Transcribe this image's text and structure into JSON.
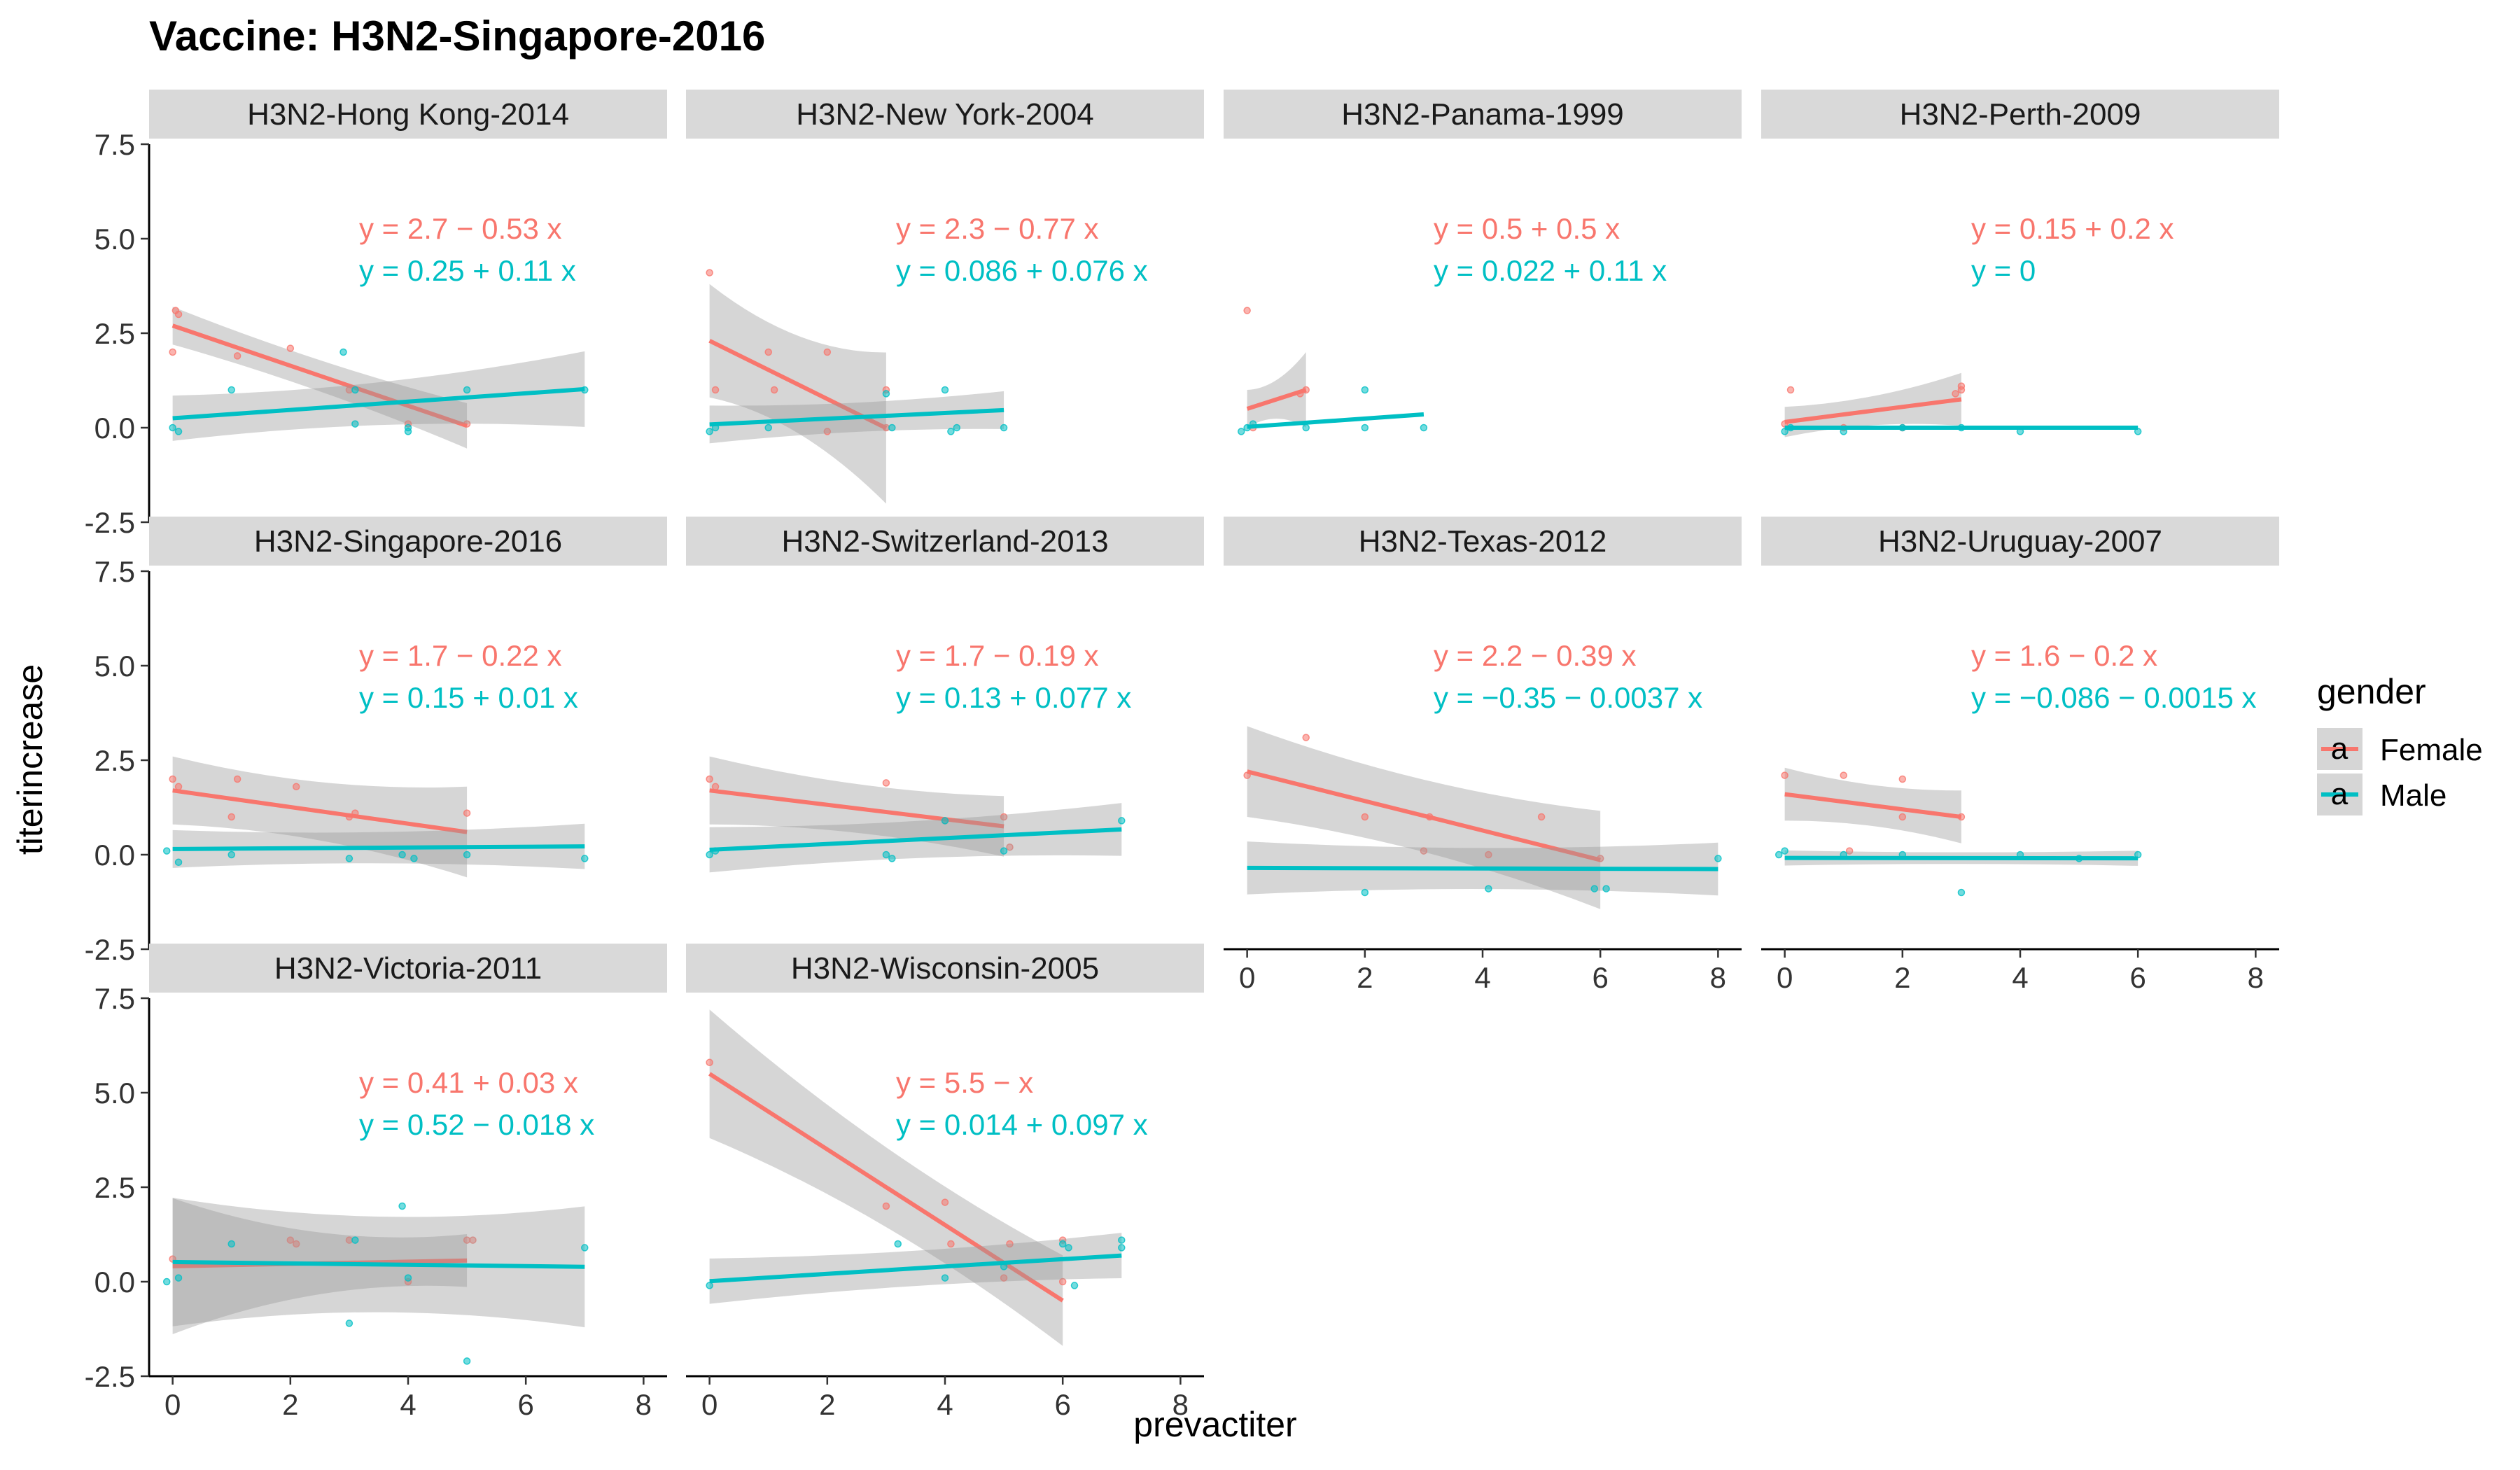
{
  "chart_data": {
    "type": "scatter",
    "title": "Vaccine: H3N2-Singapore-2016",
    "xlabel": "prevactiter",
    "ylabel": "titerincrease",
    "xlim": [
      -0.4,
      8.4
    ],
    "ylim": [
      -2.5,
      7.5
    ],
    "x_ticks": [
      "0",
      "2",
      "4",
      "6",
      "8"
    ],
    "y_ticks": [
      "-2.5",
      "0.0",
      "2.5",
      "5.0",
      "7.5"
    ],
    "legend": {
      "title": "gender",
      "position": "right",
      "entries": [
        {
          "name": "Female",
          "color": "#F8766D"
        },
        {
          "name": "Male",
          "color": "#00BFC4"
        }
      ]
    },
    "colors": {
      "female": "#F8766D",
      "male": "#00BFC4",
      "band": "#999999",
      "strip": "#d9d9d9"
    },
    "panels": [
      {
        "name": "H3N2-Hong Kong-2014",
        "female": {
          "equation": "y = 2.7 − 0.53 x",
          "intercept": 2.7,
          "slope": -0.53,
          "x_range": [
            0,
            5
          ],
          "se_at_ends": [
            0.5,
            0.6
          ],
          "points": [
            [
              0,
              2.0
            ],
            [
              0.1,
              3.0
            ],
            [
              0.05,
              3.1
            ],
            [
              1.1,
              1.9
            ],
            [
              2,
              2.1
            ],
            [
              3,
              1.0
            ],
            [
              4,
              0.1
            ],
            [
              5,
              0.1
            ]
          ]
        },
        "male": {
          "equation": "y = 0.25 + 0.11 x",
          "intercept": 0.25,
          "slope": 0.11,
          "x_range": [
            0,
            7
          ],
          "se_at_ends": [
            0.6,
            1.0
          ],
          "points": [
            [
              0,
              0.0
            ],
            [
              0.1,
              -0.1
            ],
            [
              1,
              1.0
            ],
            [
              2.9,
              2.0
            ],
            [
              3.1,
              1.0
            ],
            [
              3.1,
              0.1
            ],
            [
              4,
              0.0
            ],
            [
              4,
              -0.1
            ],
            [
              5,
              1.0
            ],
            [
              7,
              1.0
            ]
          ]
        }
      },
      {
        "name": "H3N2-New York-2004",
        "female": {
          "equation": "y = 2.3 − 0.77 x",
          "intercept": 2.3,
          "slope": -0.77,
          "x_range": [
            0,
            3
          ],
          "se_at_ends": [
            1.5,
            2.0
          ],
          "points": [
            [
              0,
              4.1
            ],
            [
              0.1,
              1.0
            ],
            [
              1,
              2.0
            ],
            [
              1.1,
              1.0
            ],
            [
              2,
              2.0
            ],
            [
              2,
              -0.1
            ],
            [
              3,
              1.0
            ],
            [
              3,
              0.0
            ]
          ]
        },
        "male": {
          "equation": "y = 0.086 + 0.076 x",
          "intercept": 0.086,
          "slope": 0.076,
          "x_range": [
            0,
            5
          ],
          "se_at_ends": [
            0.5,
            0.5
          ],
          "points": [
            [
              0,
              -0.1
            ],
            [
              0.1,
              0.0
            ],
            [
              1,
              0.0
            ],
            [
              3,
              0.9
            ],
            [
              3.1,
              0.0
            ],
            [
              4,
              1.0
            ],
            [
              4.1,
              -0.1
            ],
            [
              4.2,
              0.0
            ],
            [
              5,
              0.0
            ]
          ]
        }
      },
      {
        "name": "H3N2-Panama-1999",
        "female": {
          "equation": "y = 0.5 + 0.5 x",
          "intercept": 0.5,
          "slope": 0.5,
          "x_range": [
            0,
            1
          ],
          "se_at_ends": [
            0.5,
            1.0
          ],
          "points": [
            [
              0,
              3.1
            ],
            [
              0.1,
              0.0
            ],
            [
              1,
              1.0
            ],
            [
              0.9,
              0.9
            ]
          ]
        },
        "male": {
          "equation": "y = 0.022 + 0.11 x",
          "intercept": 0.022,
          "slope": 0.11,
          "x_range": [
            0,
            3
          ],
          "se_at_ends": [
            0,
            0
          ],
          "points": [
            [
              -0.1,
              -0.1
            ],
            [
              0,
              0.0
            ],
            [
              0.1,
              0.1
            ],
            [
              1,
              0.0
            ],
            [
              2,
              1.0
            ],
            [
              2,
              0.0
            ],
            [
              3,
              0.0
            ]
          ]
        }
      },
      {
        "name": "H3N2-Perth-2009",
        "female": {
          "equation": "y = 0.15 + 0.2 x",
          "intercept": 0.15,
          "slope": 0.2,
          "x_range": [
            0,
            3
          ],
          "se_at_ends": [
            0.4,
            0.7
          ],
          "points": [
            [
              0,
              0.1
            ],
            [
              0.1,
              1.0
            ],
            [
              1,
              0.0
            ],
            [
              2,
              0.0
            ],
            [
              3,
              1.0
            ],
            [
              3,
              1.1
            ],
            [
              2.9,
              0.9
            ]
          ]
        },
        "male": {
          "equation": "y = 0",
          "intercept": 0,
          "slope": 0,
          "x_range": [
            0,
            6
          ],
          "se_at_ends": [
            0,
            0
          ],
          "points": [
            [
              0,
              -0.1
            ],
            [
              0.1,
              0.0
            ],
            [
              1,
              -0.1
            ],
            [
              2,
              0.0
            ],
            [
              3,
              0.0
            ],
            [
              4,
              -0.1
            ],
            [
              6,
              -0.1
            ]
          ]
        }
      },
      {
        "name": "H3N2-Singapore-2016",
        "female": {
          "equation": "y = 1.7 − 0.22 x",
          "intercept": 1.7,
          "slope": -0.22,
          "x_range": [
            0,
            5
          ],
          "se_at_ends": [
            0.9,
            1.2
          ],
          "points": [
            [
              0,
              2.0
            ],
            [
              0.1,
              1.8
            ],
            [
              1,
              1.0
            ],
            [
              1.1,
              2.0
            ],
            [
              2.1,
              1.8
            ],
            [
              3,
              1.0
            ],
            [
              3.1,
              1.1
            ],
            [
              5,
              1.1
            ]
          ]
        },
        "male": {
          "equation": "y = 0.15 + 0.01 x",
          "intercept": 0.15,
          "slope": 0.01,
          "x_range": [
            0,
            7
          ],
          "se_at_ends": [
            0.5,
            0.6
          ],
          "points": [
            [
              -0.1,
              0.1
            ],
            [
              0.1,
              -0.2
            ],
            [
              1,
              0.0
            ],
            [
              3,
              -0.1
            ],
            [
              3.9,
              0.0
            ],
            [
              4.1,
              -0.1
            ],
            [
              5,
              0.0
            ],
            [
              7,
              -0.1
            ]
          ]
        }
      },
      {
        "name": "H3N2-Switzerland-2013",
        "female": {
          "equation": "y = 1.7 − 0.19 x",
          "intercept": 1.7,
          "slope": -0.19,
          "x_range": [
            0,
            5
          ],
          "se_at_ends": [
            0.9,
            0.8
          ],
          "points": [
            [
              0,
              2.0
            ],
            [
              0.1,
              1.8
            ],
            [
              3,
              1.9
            ],
            [
              4,
              0.9
            ],
            [
              5,
              1.0
            ],
            [
              5.1,
              0.2
            ]
          ]
        },
        "male": {
          "equation": "y = 0.13 + 0.077 x",
          "intercept": 0.13,
          "slope": 0.077,
          "x_range": [
            0,
            7
          ],
          "se_at_ends": [
            0.6,
            0.7
          ],
          "points": [
            [
              0,
              0.0
            ],
            [
              0.1,
              0.1
            ],
            [
              3,
              0.0
            ],
            [
              3.1,
              -0.1
            ],
            [
              4,
              0.9
            ],
            [
              5,
              0.1
            ],
            [
              7,
              0.9
            ]
          ]
        }
      },
      {
        "name": "H3N2-Texas-2012",
        "female": {
          "equation": "y = 2.2 − 0.39 x",
          "intercept": 2.2,
          "slope": -0.39,
          "x_range": [
            0,
            6
          ],
          "se_at_ends": [
            1.2,
            1.3
          ],
          "points": [
            [
              0,
              2.1
            ],
            [
              1,
              3.1
            ],
            [
              2,
              1.0
            ],
            [
              3,
              0.1
            ],
            [
              3.1,
              1.0
            ],
            [
              4.1,
              0.0
            ],
            [
              5,
              1.0
            ],
            [
              6,
              -0.1
            ]
          ]
        },
        "male": {
          "equation": "y = −0.35 − 0.0037 x",
          "intercept": -0.35,
          "slope": -0.0037,
          "x_range": [
            0,
            8
          ],
          "se_at_ends": [
            0.7,
            0.7
          ],
          "points": [
            [
              2,
              -1.0
            ],
            [
              4.1,
              -0.9
            ],
            [
              5.9,
              -0.9
            ],
            [
              6.1,
              -0.9
            ],
            [
              8,
              -0.1
            ]
          ]
        }
      },
      {
        "name": "H3N2-Uruguay-2007",
        "female": {
          "equation": "y = 1.6 − 0.2 x",
          "intercept": 1.6,
          "slope": -0.2,
          "x_range": [
            0,
            3
          ],
          "se_at_ends": [
            0.7,
            0.7
          ],
          "points": [
            [
              0,
              2.1
            ],
            [
              1,
              2.1
            ],
            [
              2,
              2.0
            ],
            [
              2,
              1.0
            ],
            [
              3,
              1.0
            ],
            [
              1.1,
              0.1
            ]
          ]
        },
        "male": {
          "equation": "y = −0.086 − 0.0015 x",
          "intercept": -0.086,
          "slope": -0.0015,
          "x_range": [
            0,
            6
          ],
          "se_at_ends": [
            0.2,
            0.2
          ],
          "points": [
            [
              -0.1,
              0.0
            ],
            [
              0,
              0.1
            ],
            [
              1,
              0.0
            ],
            [
              2,
              0.0
            ],
            [
              3,
              -1.0
            ],
            [
              4,
              0.0
            ],
            [
              5,
              -0.1
            ],
            [
              6,
              0.0
            ]
          ]
        }
      },
      {
        "name": "H3N2-Victoria-2011",
        "female": {
          "equation": "y = 0.41 + 0.03 x",
          "intercept": 0.41,
          "slope": 0.03,
          "x_range": [
            0,
            5
          ],
          "se_at_ends": [
            1.8,
            0.7
          ],
          "points": [
            [
              0,
              0.6
            ],
            [
              2,
              1.1
            ],
            [
              2.1,
              1.0
            ],
            [
              3,
              1.1
            ],
            [
              4,
              0.0
            ],
            [
              5,
              1.1
            ],
            [
              5.1,
              1.1
            ]
          ]
        },
        "male": {
          "equation": "y = 0.52 − 0.018 x",
          "intercept": 0.52,
          "slope": -0.018,
          "x_range": [
            0,
            7
          ],
          "se_at_ends": [
            1.7,
            1.6
          ],
          "points": [
            [
              -0.1,
              0.0
            ],
            [
              0.1,
              0.1
            ],
            [
              1,
              1.0
            ],
            [
              3,
              -1.1
            ],
            [
              3.1,
              1.1
            ],
            [
              3.9,
              2.0
            ],
            [
              4,
              0.1
            ],
            [
              5,
              -2.1
            ],
            [
              7,
              0.9
            ]
          ]
        }
      },
      {
        "name": "H3N2-Wisconsin-2005",
        "female": {
          "equation": "y = 5.5 −  x",
          "intercept": 5.5,
          "slope": -1.0,
          "x_range": [
            0,
            6
          ],
          "se_at_ends": [
            1.7,
            1.2
          ],
          "points": [
            [
              0,
              5.8
            ],
            [
              3,
              2.0
            ],
            [
              4,
              2.1
            ],
            [
              4.1,
              1.0
            ],
            [
              5,
              0.1
            ],
            [
              5.1,
              1.0
            ],
            [
              6,
              1.1
            ],
            [
              6,
              0.0
            ]
          ]
        },
        "male": {
          "equation": "y = 0.014 + 0.097 x",
          "intercept": 0.014,
          "slope": 0.097,
          "x_range": [
            0,
            7
          ],
          "se_at_ends": [
            0.6,
            0.6
          ],
          "points": [
            [
              0,
              -0.1
            ],
            [
              3.2,
              1.0
            ],
            [
              4,
              0.1
            ],
            [
              5,
              0.4
            ],
            [
              6,
              1.0
            ],
            [
              6.1,
              0.9
            ],
            [
              6.2,
              -0.1
            ],
            [
              7,
              1.1
            ],
            [
              7,
              0.9
            ]
          ]
        }
      }
    ]
  }
}
